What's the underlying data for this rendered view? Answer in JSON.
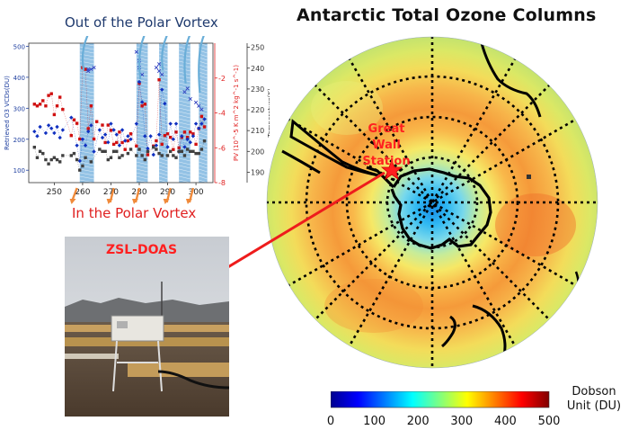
{
  "title": "Antarctic Total Ozone Columns",
  "labels": {
    "out_of_vortex": "Out of the Polar Vortex",
    "in_vortex": "In the Polar Vortex",
    "station": "Great Wall Station",
    "station_line1": "Great Wall",
    "station_line2": "Station",
    "instrument": "ZSL-DOAS",
    "unit_line1": "Dobson",
    "unit_line2": "Unit (DU)"
  },
  "colorbar": {
    "ticks": [
      "0",
      "100",
      "200",
      "300",
      "400",
      "500"
    ],
    "min": 0,
    "max": 500,
    "colors": [
      "#00008f",
      "#0000ff",
      "#00ffff",
      "#ffff00",
      "#ff0000",
      "#800000"
    ]
  },
  "chart_data": {
    "type": "scatter",
    "x_ticks": [
      "250",
      "260",
      "270",
      "280",
      "290",
      "300"
    ],
    "xlim": [
      241,
      306
    ],
    "left_axis": {
      "label": "Retrieved O3 VCDs(DU)",
      "ticks": [
        "100",
        "200",
        "300",
        "400",
        "500"
      ],
      "ylim": [
        60,
        510
      ],
      "color": "#2040a0"
    },
    "right_axis_pv": {
      "label": "PV (10^-5 K m^2 kg^-1 s^-1)",
      "ticks": [
        "-2",
        "-4",
        "-6",
        "-8"
      ],
      "ylim": [
        -8,
        0
      ],
      "color": "#e02020"
    },
    "right_axis_temp": {
      "label": "Temperature(K)",
      "ticks": [
        "190",
        "200",
        "210",
        "220",
        "230",
        "240",
        "250"
      ],
      "ylim": [
        185,
        252
      ],
      "color": "#333333"
    },
    "vortex_bands": [
      [
        259,
        264
      ],
      [
        279,
        283
      ],
      [
        287,
        290
      ],
      [
        294,
        298
      ],
      [
        301,
        304
      ]
    ],
    "series": [
      {
        "marker": "square",
        "color": "#d01010",
        "x": [
          243,
          244,
          245,
          246,
          247,
          248,
          249,
          250,
          251,
          252,
          253,
          256,
          257,
          258,
          259,
          260,
          261,
          262,
          263,
          264,
          265,
          267,
          268,
          269,
          270,
          271,
          272,
          273,
          274,
          275,
          276,
          277,
          279,
          280,
          281,
          282,
          283,
          285,
          286,
          287,
          288,
          289,
          290,
          291,
          292,
          293,
          294,
          295,
          296,
          297,
          298,
          299,
          300,
          301,
          302,
          303
        ],
        "y": [
          -3.5,
          -3.6,
          -3.5,
          -3.3,
          -3.6,
          -3.0,
          -2.9,
          -4.1,
          -3.6,
          -3.1,
          -3.8,
          -5.3,
          -4.4,
          -4.6,
          -5.5,
          -1.4,
          -1.5,
          -4.9,
          -3.6,
          -5.5,
          -4.5,
          -4.7,
          -5.7,
          -4.7,
          -5.0,
          -5.8,
          -5.7,
          -5.1,
          -5.7,
          -6.1,
          -5.6,
          -5.2,
          -5.9,
          -2.3,
          -3.6,
          -3.5,
          -6.4,
          -5.9,
          -5.6,
          -2.1,
          -5.8,
          -5.3,
          -5.2,
          -5.4,
          -6.1,
          -5.1,
          -6.0,
          -5.4,
          -5.1,
          -5.4,
          -5.1,
          -5.2,
          -5.8,
          -4.9,
          -4.2,
          -4.8
        ]
      },
      {
        "marker": "diamond",
        "color": "#1030c0",
        "x": [
          243,
          244,
          245,
          247,
          248,
          249,
          250,
          251,
          252,
          253,
          256,
          258,
          259,
          260,
          261,
          262,
          263,
          264,
          266,
          267,
          268,
          269,
          270,
          271,
          272,
          273,
          274,
          275,
          276,
          277,
          279,
          280,
          281,
          282,
          283,
          284,
          285,
          286,
          287,
          288,
          289,
          290,
          291,
          292,
          293,
          294,
          295,
          296,
          297,
          298,
          299,
          300,
          301,
          302,
          303
        ],
        "y": [
          225,
          210,
          240,
          220,
          245,
          235,
          220,
          240,
          205,
          230,
          270,
          180,
          130,
          200,
          180,
          225,
          245,
          160,
          230,
          205,
          215,
          190,
          250,
          230,
          215,
          180,
          230,
          195,
          210,
          200,
          250,
          385,
          320,
          210,
          170,
          210,
          150,
          180,
          215,
          360,
          315,
          175,
          250,
          200,
          250,
          160,
          210,
          175,
          200,
          190,
          210,
          250,
          235,
          250,
          265
        ]
      },
      {
        "marker": "square",
        "color": "#404040",
        "x": [
          243,
          244,
          245,
          246,
          247,
          248,
          249,
          250,
          251,
          252,
          253,
          256,
          257,
          258,
          259,
          260,
          261,
          263,
          266,
          267,
          268,
          269,
          270,
          271,
          272,
          273,
          274,
          276,
          277,
          279,
          280,
          281,
          282,
          283,
          285,
          286,
          287,
          288,
          290,
          291,
          292,
          293,
          294,
          295,
          296,
          297,
          298,
          299,
          300,
          301,
          302,
          303
        ],
        "y": [
          202,
          197,
          200,
          199,
          196,
          194,
          196,
          197,
          196,
          195,
          198,
          198,
          199,
          196,
          191,
          193,
          197,
          195,
          201,
          200,
          200,
          196,
          197,
          200,
          200,
          197,
          198,
          199,
          201,
          198,
          201,
          198,
          196,
          200,
          202,
          201,
          199,
          198,
          198,
          200,
          198,
          197,
          200,
          200,
          198,
          201,
          200,
          200,
          199,
          199,
          201,
          205
        ]
      },
      {
        "marker": "x",
        "color": "#3040c0",
        "x": [
          262,
          262,
          263,
          264,
          279,
          280,
          280,
          281,
          286,
          287,
          287,
          288,
          296,
          297,
          298,
          300,
          301,
          302
        ],
        "y": [
          -1.5,
          -1.6,
          -1.5,
          -1.4,
          -0.5,
          -1.4,
          -1.0,
          -1.8,
          -1.4,
          -1.6,
          -1.2,
          -1.8,
          -2.8,
          -2.6,
          -3.2,
          -3.4,
          -3.6,
          -3.8
        ]
      }
    ]
  }
}
